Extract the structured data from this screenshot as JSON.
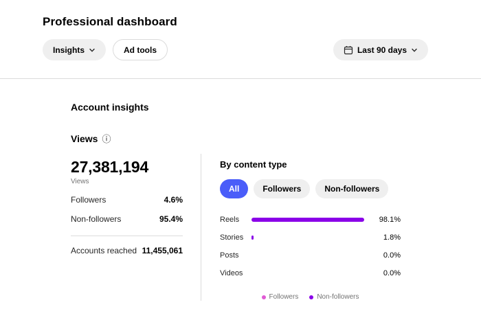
{
  "page": {
    "title": "Professional dashboard"
  },
  "toolbar": {
    "insights_label": "Insights",
    "ad_tools_label": "Ad tools",
    "date_range_label": "Last 90 days"
  },
  "icons": {
    "info": "ⓘ"
  },
  "colors": {
    "accent_tab": "#4a5df9",
    "bar_purple": "#8a00e8",
    "followers_pink": "#e05bd4",
    "divider_gray": "#dbdbdb"
  },
  "account_insights": {
    "title": "Account insights",
    "views": {
      "title": "Views",
      "total": "27,381,194",
      "total_label": "Views",
      "rows": [
        {
          "label": "Followers",
          "value": "4.6%"
        },
        {
          "label": "Non-followers",
          "value": "95.4%"
        }
      ],
      "accounts_reached_label": "Accounts reached",
      "accounts_reached_value": "11,455,061"
    },
    "by_content_type": {
      "title": "By content type",
      "tabs": [
        {
          "label": "All",
          "selected": true
        },
        {
          "label": "Followers",
          "selected": false
        },
        {
          "label": "Non-followers",
          "selected": false
        }
      ],
      "legend": [
        {
          "label": "Followers",
          "color": "#e05bd4"
        },
        {
          "label": "Non-followers",
          "color": "#8a00e8"
        }
      ]
    }
  },
  "chart_data": {
    "type": "bar",
    "orientation": "horizontal",
    "title": "By content type",
    "categories": [
      "Reels",
      "Stories",
      "Posts",
      "Videos"
    ],
    "values": [
      98.1,
      1.8,
      0.0,
      0.0
    ],
    "value_labels": [
      "98.1%",
      "1.8%",
      "0.0%",
      "0.0%"
    ],
    "xlim": [
      0,
      100
    ],
    "bar_color": "#8a00e8",
    "legend": [
      "Followers",
      "Non-followers"
    ],
    "legend_position": "bottom"
  }
}
